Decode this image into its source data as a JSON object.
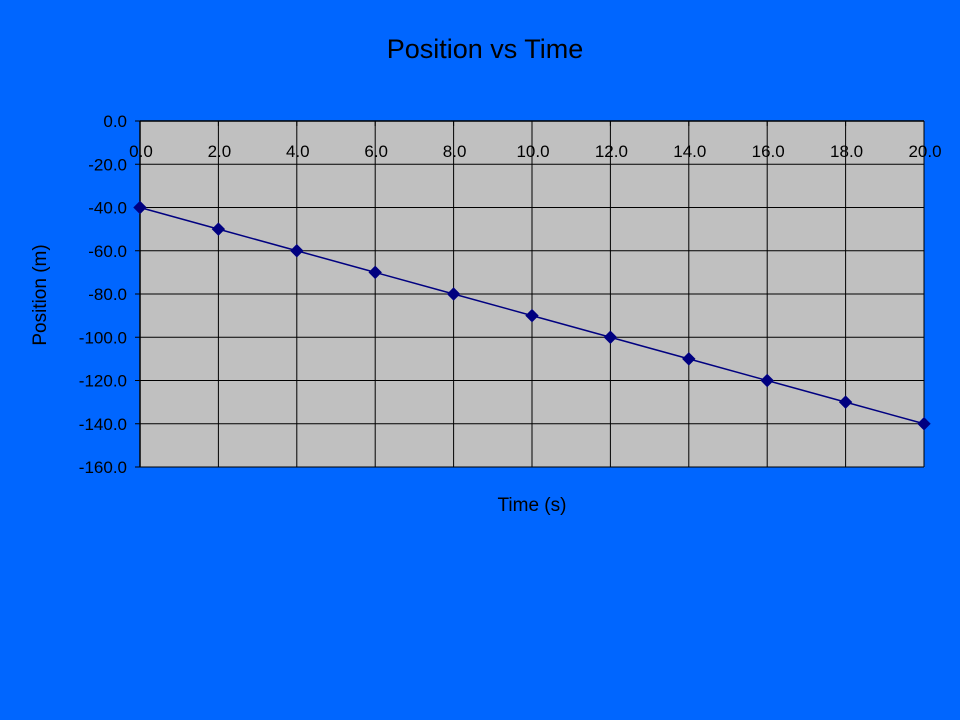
{
  "chart_data": {
    "type": "line",
    "title": "Position vs Time",
    "xlabel": "Time (s)",
    "ylabel": "Position (m)",
    "xlim": [
      0,
      20
    ],
    "ylim": [
      -160,
      0
    ],
    "x_ticks": [
      "0.0",
      "2.0",
      "4.0",
      "6.0",
      "8.0",
      "10.0",
      "12.0",
      "14.0",
      "16.0",
      "18.0",
      "20.0"
    ],
    "y_ticks": [
      "0.0",
      "-20.0",
      "-40.0",
      "-60.0",
      "-80.0",
      "-100.0",
      "-120.0",
      "-140.0",
      "-160.0"
    ],
    "x_tick_values": [
      0,
      2,
      4,
      6,
      8,
      10,
      12,
      14,
      16,
      18,
      20
    ],
    "y_tick_values": [
      0,
      -20,
      -40,
      -60,
      -80,
      -100,
      -120,
      -140,
      -160
    ],
    "x_axis_position": "top",
    "grid": true,
    "legend": "none",
    "series": [
      {
        "x": [
          0,
          2,
          4,
          6,
          8,
          10,
          12,
          14,
          16,
          18,
          20
        ],
        "values": [
          -40,
          -50,
          -60,
          -70,
          -80,
          -90,
          -100,
          -110,
          -120,
          -130,
          -140
        ]
      }
    ]
  },
  "colors": {
    "background": "#0066ff",
    "plot_area": "#c0c0c0",
    "series_line": "#000080",
    "grid": "#000000"
  }
}
